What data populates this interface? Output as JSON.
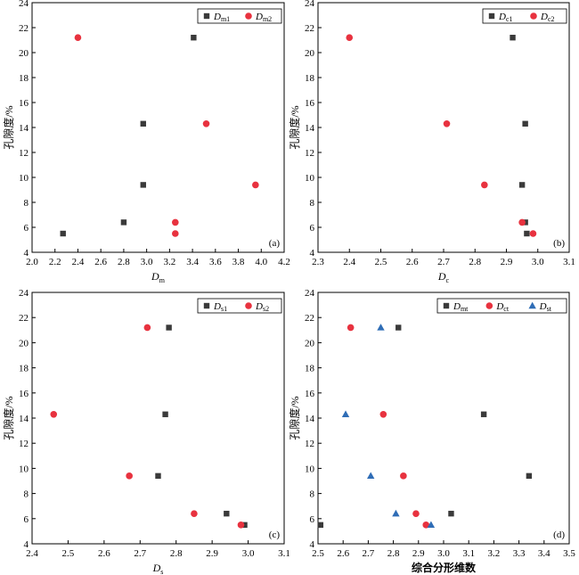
{
  "colors": {
    "square": "#3a3a3a",
    "circle": "#e8323f",
    "triangle": "#2f6db6"
  },
  "chart_data": [
    {
      "type": "scatter",
      "panel_label": "(a)",
      "xlabel": "D",
      "xlabel_sub": "m",
      "ylabel": "孔隙度/%",
      "xlim": [
        2.0,
        4.2
      ],
      "ylim": [
        4,
        24
      ],
      "xticks": [
        "2.0",
        "2.2",
        "2.4",
        "2.6",
        "2.8",
        "3.0",
        "3.2",
        "3.4",
        "3.6",
        "3.8",
        "4.0",
        "4.2"
      ],
      "yticks": [
        "4",
        "6",
        "8",
        "10",
        "12",
        "14",
        "16",
        "18",
        "20",
        "22",
        "24"
      ],
      "legend_position": "top-right",
      "series": [
        {
          "name": "D",
          "sub": "m1",
          "marker": "square",
          "points": [
            [
              2.27,
              5.5
            ],
            [
              2.8,
              6.4
            ],
            [
              2.97,
              9.4
            ],
            [
              2.97,
              14.3
            ],
            [
              3.41,
              21.2
            ]
          ]
        },
        {
          "name": "D",
          "sub": "m2",
          "marker": "circle",
          "points": [
            [
              2.4,
              21.2
            ],
            [
              3.25,
              6.4
            ],
            [
              3.25,
              5.5
            ],
            [
              3.52,
              14.3
            ],
            [
              3.95,
              9.4
            ]
          ]
        }
      ]
    },
    {
      "type": "scatter",
      "panel_label": "(b)",
      "xlabel": "D",
      "xlabel_sub": "c",
      "ylabel": "孔隙度/%",
      "xlim": [
        2.3,
        3.1
      ],
      "ylim": [
        4,
        24
      ],
      "xticks": [
        "2.3",
        "2.4",
        "2.5",
        "2.6",
        "2.7",
        "2.8",
        "2.9",
        "3.0",
        "3.1"
      ],
      "yticks": [
        "4",
        "6",
        "8",
        "10",
        "12",
        "14",
        "16",
        "18",
        "20",
        "22",
        "24"
      ],
      "legend_position": "top-right",
      "series": [
        {
          "name": "D",
          "sub": "c1",
          "marker": "square",
          "points": [
            [
              2.92,
              21.2
            ],
            [
              2.96,
              14.3
            ],
            [
              2.95,
              9.4
            ],
            [
              2.96,
              6.4
            ],
            [
              2.965,
              5.5
            ]
          ]
        },
        {
          "name": "D",
          "sub": "c2",
          "marker": "circle",
          "points": [
            [
              2.4,
              21.2
            ],
            [
              2.71,
              14.3
            ],
            [
              2.83,
              9.4
            ],
            [
              2.95,
              6.4
            ],
            [
              2.985,
              5.5
            ]
          ]
        }
      ]
    },
    {
      "type": "scatter",
      "panel_label": "(c)",
      "xlabel": "D",
      "xlabel_sub": "s",
      "ylabel": "孔隙度/%",
      "xlim": [
        2.4,
        3.1
      ],
      "ylim": [
        4,
        24
      ],
      "xticks": [
        "2.4",
        "2.5",
        "2.6",
        "2.7",
        "2.8",
        "2.9",
        "3.0",
        "3.1"
      ],
      "yticks": [
        "4",
        "6",
        "8",
        "10",
        "12",
        "14",
        "16",
        "18",
        "20",
        "22",
        "24"
      ],
      "legend_position": "top-right",
      "series": [
        {
          "name": "D",
          "sub": "s1",
          "marker": "square",
          "points": [
            [
              2.78,
              21.2
            ],
            [
              2.77,
              14.3
            ],
            [
              2.75,
              9.4
            ],
            [
              2.94,
              6.4
            ],
            [
              2.99,
              5.5
            ]
          ]
        },
        {
          "name": "D",
          "sub": "s2",
          "marker": "circle",
          "points": [
            [
              2.72,
              21.2
            ],
            [
              2.46,
              14.3
            ],
            [
              2.67,
              9.4
            ],
            [
              2.85,
              6.4
            ],
            [
              2.98,
              5.5
            ]
          ]
        }
      ]
    },
    {
      "type": "scatter",
      "panel_label": "(d)",
      "xlabel": "综合分形维数",
      "xlabel_sub": "",
      "ylabel": "孔隙度/%",
      "xlim": [
        2.5,
        3.5
      ],
      "ylim": [
        4,
        24
      ],
      "xticks": [
        "2.5",
        "2.6",
        "2.7",
        "2.8",
        "2.9",
        "3.0",
        "3.1",
        "3.2",
        "3.3",
        "3.4",
        "3.5"
      ],
      "yticks": [
        "4",
        "6",
        "8",
        "10",
        "12",
        "14",
        "16",
        "18",
        "20",
        "22",
        "24"
      ],
      "legend_position": "top-right",
      "series": [
        {
          "name": "D",
          "sub": "mt",
          "marker": "square",
          "points": [
            [
              2.82,
              21.2
            ],
            [
              3.16,
              14.3
            ],
            [
              3.34,
              9.4
            ],
            [
              3.03,
              6.4
            ],
            [
              2.51,
              5.5
            ]
          ]
        },
        {
          "name": "D",
          "sub": "ct",
          "marker": "circle",
          "points": [
            [
              2.63,
              21.2
            ],
            [
              2.76,
              14.3
            ],
            [
              2.84,
              9.4
            ],
            [
              2.89,
              6.4
            ],
            [
              2.93,
              5.5
            ]
          ]
        },
        {
          "name": "D",
          "sub": "st",
          "marker": "triangle",
          "points": [
            [
              2.75,
              21.2
            ],
            [
              2.61,
              14.3
            ],
            [
              2.71,
              9.4
            ],
            [
              2.81,
              6.4
            ],
            [
              2.95,
              5.5
            ]
          ]
        }
      ]
    }
  ]
}
